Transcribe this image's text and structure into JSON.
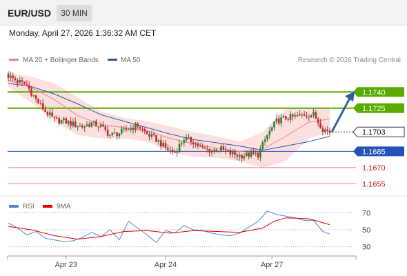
{
  "header": {
    "symbol": "EUR/USD",
    "timeframe": "30 MIN"
  },
  "datetime": "Monday, April 27, 2026 1:36:32 AM CET",
  "legend": [
    {
      "label": "MA 20 + Bollinger Bands",
      "color": "#f08080"
    },
    {
      "label": "MA 50",
      "color": "#2e5597"
    }
  ],
  "copyright": "Research © 2026 Trading Central",
  "indicator_legend": [
    {
      "label": "RSI",
      "color": "#5b7fd6"
    },
    {
      "label": "9MA",
      "color": "#e00000"
    }
  ],
  "colors": {
    "resistance": "#5aaa00",
    "support": "#2052b8",
    "support_weak": "#f07a7a",
    "arrow": "#2e5f9f",
    "bull": "#2e7d32",
    "bear": "#c62828"
  },
  "chart_data": [
    {
      "type": "candlestick",
      "ylim": [
        1.1645,
        1.176
      ],
      "x_ticks": [
        "Apr 23",
        "Apr 24",
        "Apr 27"
      ],
      "last_price": 1.1703,
      "levels": [
        {
          "value": 1.174,
          "label": "1.1740",
          "kind": "resistance"
        },
        {
          "value": 1.1725,
          "label": "1.1725",
          "kind": "resistance"
        },
        {
          "value": 1.1685,
          "label": "1.1685",
          "kind": "support"
        },
        {
          "value": 1.167,
          "label": "1.1670",
          "kind": "support_weak"
        },
        {
          "value": 1.1655,
          "label": "1.1655",
          "kind": "support_weak"
        }
      ],
      "arrow": {
        "from": 1.1703,
        "to": 1.1738
      },
      "close_path": [
        [
          0,
          1.1755
        ],
        [
          4,
          1.175
        ],
        [
          8,
          1.1746
        ],
        [
          12,
          1.1733
        ],
        [
          16,
          1.1722
        ],
        [
          20,
          1.1714
        ],
        [
          24,
          1.1713
        ],
        [
          28,
          1.171
        ],
        [
          32,
          1.1708
        ],
        [
          36,
          1.1711
        ],
        [
          40,
          1.1708
        ],
        [
          44,
          1.17
        ],
        [
          48,
          1.1702
        ],
        [
          52,
          1.1706
        ],
        [
          56,
          1.1709
        ],
        [
          60,
          1.1701
        ],
        [
          64,
          1.1696
        ],
        [
          68,
          1.1688
        ],
        [
          72,
          1.1684
        ],
        [
          76,
          1.1697
        ],
        [
          80,
          1.1694
        ],
        [
          84,
          1.1687
        ],
        [
          88,
          1.1686
        ],
        [
          92,
          1.1687
        ],
        [
          96,
          1.1683
        ],
        [
          100,
          1.1681
        ],
        [
          104,
          1.1682
        ],
        [
          108,
          1.1682
        ],
        [
          112,
          1.17
        ],
        [
          116,
          1.1713
        ],
        [
          120,
          1.1716
        ],
        [
          124,
          1.1717
        ],
        [
          128,
          1.1719
        ],
        [
          132,
          1.1719
        ],
        [
          136,
          1.1706
        ],
        [
          139,
          1.1703
        ]
      ],
      "ma20": [
        [
          0,
          1.1751
        ],
        [
          10,
          1.1744
        ],
        [
          20,
          1.1733
        ],
        [
          30,
          1.1718
        ],
        [
          40,
          1.171
        ],
        [
          50,
          1.1707
        ],
        [
          60,
          1.1704
        ],
        [
          70,
          1.1697
        ],
        [
          80,
          1.1692
        ],
        [
          90,
          1.1688
        ],
        [
          100,
          1.1685
        ],
        [
          110,
          1.1687
        ],
        [
          120,
          1.1699
        ],
        [
          130,
          1.1712
        ],
        [
          139,
          1.1715
        ]
      ],
      "ma50": [
        [
          0,
          1.1748
        ],
        [
          10,
          1.1745
        ],
        [
          20,
          1.1738
        ],
        [
          30,
          1.1729
        ],
        [
          40,
          1.1719
        ],
        [
          50,
          1.1713
        ],
        [
          60,
          1.1707
        ],
        [
          70,
          1.1701
        ],
        [
          80,
          1.1696
        ],
        [
          90,
          1.1693
        ],
        [
          100,
          1.169
        ],
        [
          110,
          1.1686
        ],
        [
          120,
          1.169
        ],
        [
          130,
          1.1694
        ],
        [
          139,
          1.1699
        ]
      ],
      "bb_upper": [
        [
          0,
          1.1758
        ],
        [
          10,
          1.1754
        ],
        [
          20,
          1.1748
        ],
        [
          30,
          1.1735
        ],
        [
          40,
          1.1722
        ],
        [
          50,
          1.1716
        ],
        [
          60,
          1.1713
        ],
        [
          70,
          1.1708
        ],
        [
          80,
          1.1703
        ],
        [
          90,
          1.1699
        ],
        [
          100,
          1.1694
        ],
        [
          110,
          1.1703
        ],
        [
          120,
          1.1724
        ],
        [
          130,
          1.1726
        ],
        [
          139,
          1.1725
        ]
      ],
      "bb_lower": [
        [
          0,
          1.1745
        ],
        [
          10,
          1.173
        ],
        [
          20,
          1.1713
        ],
        [
          30,
          1.17
        ],
        [
          40,
          1.1697
        ],
        [
          50,
          1.1697
        ],
        [
          60,
          1.1694
        ],
        [
          70,
          1.1684
        ],
        [
          80,
          1.168
        ],
        [
          90,
          1.1679
        ],
        [
          100,
          1.1676
        ],
        [
          110,
          1.167
        ],
        [
          120,
          1.1676
        ],
        [
          130,
          1.1697
        ],
        [
          139,
          1.1703
        ]
      ]
    },
    {
      "type": "line",
      "ylim": [
        20,
        80
      ],
      "y_ticks": [
        30,
        50,
        70
      ],
      "series": [
        {
          "name": "RSI",
          "values": [
            [
              0,
              58
            ],
            [
              4,
              52
            ],
            [
              8,
              44
            ],
            [
              12,
              48
            ],
            [
              16,
              40
            ],
            [
              20,
              38
            ],
            [
              24,
              36
            ],
            [
              28,
              37
            ],
            [
              32,
              41
            ],
            [
              36,
              47
            ],
            [
              40,
              42
            ],
            [
              44,
              50
            ],
            [
              48,
              38
            ],
            [
              52,
              60
            ],
            [
              56,
              52
            ],
            [
              60,
              44
            ],
            [
              64,
              35
            ],
            [
              68,
              49
            ],
            [
              72,
              46
            ],
            [
              76,
              55
            ],
            [
              80,
              50
            ],
            [
              84,
              49
            ],
            [
              88,
              46
            ],
            [
              92,
              44
            ],
            [
              96,
              43
            ],
            [
              100,
              46
            ],
            [
              104,
              53
            ],
            [
              108,
              60
            ],
            [
              112,
              72
            ],
            [
              116,
              68
            ],
            [
              120,
              66
            ],
            [
              124,
              64
            ],
            [
              128,
              61
            ],
            [
              132,
              61
            ],
            [
              136,
              48
            ],
            [
              139,
              45
            ]
          ]
        },
        {
          "name": "9MA",
          "values": [
            [
              0,
              54
            ],
            [
              10,
              50
            ],
            [
              20,
              43
            ],
            [
              30,
              39
            ],
            [
              40,
              42
            ],
            [
              50,
              48
            ],
            [
              60,
              49
            ],
            [
              70,
              46
            ],
            [
              80,
              49
            ],
            [
              90,
              48
            ],
            [
              100,
              47
            ],
            [
              110,
              52
            ],
            [
              115,
              60
            ],
            [
              120,
              64
            ],
            [
              130,
              63
            ],
            [
              139,
              56
            ]
          ]
        }
      ]
    }
  ]
}
